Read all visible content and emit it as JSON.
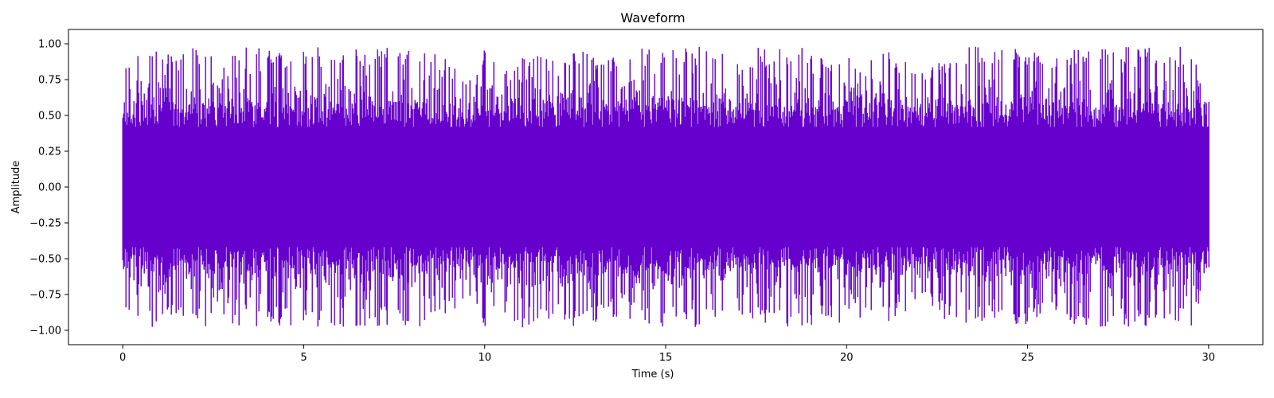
{
  "chart_data": {
    "type": "line",
    "title": "Waveform",
    "xlabel": "Time (s)",
    "ylabel": "Amplitude",
    "xlim": [
      -1.5,
      31.5
    ],
    "ylim": [
      -1.1,
      1.1
    ],
    "xticks": [
      0,
      5,
      10,
      15,
      20,
      25,
      30
    ],
    "xtick_labels": [
      "0",
      "5",
      "10",
      "15",
      "20",
      "25",
      "30"
    ],
    "yticks": [
      -1.0,
      -0.75,
      -0.5,
      -0.25,
      0.0,
      0.25,
      0.5,
      0.75,
      1.0
    ],
    "ytick_labels": [
      "−1.00",
      "−0.75",
      "−0.50",
      "−0.25",
      "0.00",
      "0.25",
      "0.50",
      "0.75",
      "1.00"
    ],
    "grid": false,
    "legend": "none",
    "series": [
      {
        "color": "#6600cc",
        "duration_s": 30,
        "envelope": {
          "t": [
            0,
            0.2,
            0.5,
            1,
            1.5,
            2,
            2.5,
            3,
            3.5,
            4,
            4.5,
            5,
            5.5,
            6,
            6.5,
            7,
            7.5,
            8,
            8.5,
            9,
            9.5,
            10,
            10.5,
            11,
            11.5,
            12,
            12.5,
            13,
            13.5,
            14,
            14.5,
            15,
            15.5,
            16,
            16.5,
            17,
            17.5,
            18,
            18.5,
            19,
            19.5,
            20,
            20.5,
            21,
            21.5,
            22,
            22.5,
            23,
            23.5,
            24,
            24.5,
            25,
            25.5,
            26,
            26.5,
            27,
            27.5,
            28,
            28.5,
            29,
            29.5,
            30
          ],
          "peak": [
            0.76,
            0.98,
            0.98,
            0.98,
            0.9,
            0.98,
            0.98,
            0.98,
            0.98,
            0.98,
            0.98,
            0.98,
            0.98,
            0.98,
            0.98,
            0.98,
            0.98,
            0.98,
            0.98,
            0.9,
            0.75,
            0.98,
            0.9,
            0.98,
            0.98,
            0.9,
            0.98,
            0.98,
            0.9,
            0.98,
            0.98,
            0.98,
            0.98,
            0.98,
            0.98,
            0.9,
            0.98,
            0.98,
            0.98,
            0.98,
            0.9,
            0.98,
            0.9,
            0.98,
            0.9,
            0.8,
            0.9,
            0.98,
            0.98,
            0.98,
            0.98,
            0.98,
            0.9,
            0.98,
            0.98,
            0.98,
            0.98,
            0.98,
            0.98,
            0.98,
            0.98,
            0.6
          ]
        }
      }
    ]
  }
}
